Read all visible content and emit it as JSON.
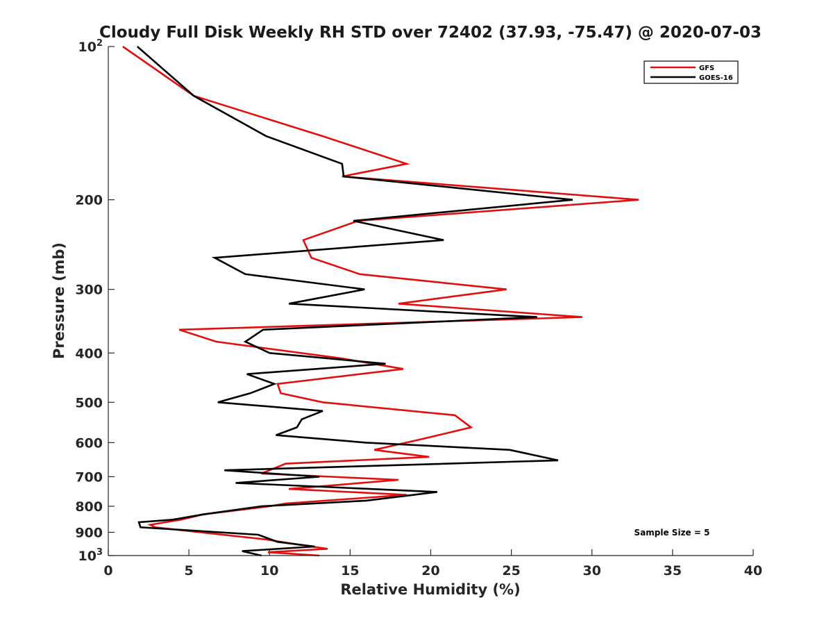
{
  "chart_data": {
    "type": "line",
    "title": "Cloudy Full Disk Weekly RH STD over 72402 (37.93, -75.47) @ 2020-07-03",
    "xlabel": "Relative Humidity (%)",
    "ylabel": "Pressure (mb)",
    "xlim": [
      0,
      40
    ],
    "ylim": [
      100,
      1000
    ],
    "y_scale": "log",
    "y_reversed": true,
    "x_ticks": [
      "0",
      "5",
      "10",
      "15",
      "20",
      "25",
      "30",
      "35",
      "40"
    ],
    "y_ticks": [
      {
        "value": 100,
        "base": "10",
        "exp": "2"
      },
      {
        "value": 200,
        "label": "200"
      },
      {
        "value": 300,
        "label": "300"
      },
      {
        "value": 400,
        "label": "400"
      },
      {
        "value": 500,
        "label": "500"
      },
      {
        "value": 600,
        "label": "600"
      },
      {
        "value": 700,
        "label": "700"
      },
      {
        "value": 800,
        "label": "800"
      },
      {
        "value": 900,
        "label": "900"
      },
      {
        "value": 1000,
        "base": "10",
        "exp": "3"
      }
    ],
    "legend_position": "top-right",
    "grid": false,
    "annotation": "Sample Size = 5",
    "series": [
      {
        "name": "GFS",
        "color": "#e01010",
        "points": [
          [
            0.9,
            100
          ],
          [
            5.3,
            125
          ],
          [
            13.3,
            150
          ],
          [
            18.5,
            170
          ],
          [
            14.5,
            180
          ],
          [
            32.9,
            200
          ],
          [
            15.5,
            220
          ],
          [
            12.1,
            240
          ],
          [
            12.6,
            260
          ],
          [
            15.6,
            280
          ],
          [
            24.7,
            300
          ],
          [
            18.0,
            320
          ],
          [
            29.4,
            340
          ],
          [
            4.4,
            360
          ],
          [
            6.7,
            380
          ],
          [
            14.5,
            410
          ],
          [
            18.3,
            430
          ],
          [
            10.5,
            460
          ],
          [
            10.7,
            480
          ],
          [
            13.3,
            500
          ],
          [
            21.5,
            530
          ],
          [
            22.5,
            560
          ],
          [
            19.5,
            590
          ],
          [
            16.5,
            620
          ],
          [
            19.9,
            640
          ],
          [
            11.0,
            660
          ],
          [
            9.5,
            690
          ],
          [
            18.0,
            710
          ],
          [
            11.2,
            740
          ],
          [
            18.5,
            760
          ],
          [
            11.0,
            790
          ],
          [
            10.0,
            800
          ],
          [
            5.9,
            830
          ],
          [
            4.5,
            850
          ],
          [
            2.6,
            870
          ],
          [
            2.9,
            880
          ],
          [
            9.8,
            930
          ],
          [
            12.1,
            955
          ],
          [
            13.6,
            970
          ],
          [
            9.9,
            985
          ],
          [
            13.1,
            1000
          ]
        ]
      },
      {
        "name": "GOES-16",
        "color": "#000000",
        "points": [
          [
            1.8,
            100
          ],
          [
            5.3,
            125
          ],
          [
            9.8,
            150
          ],
          [
            14.5,
            170
          ],
          [
            14.6,
            180
          ],
          [
            28.8,
            200
          ],
          [
            15.2,
            220
          ],
          [
            20.8,
            240
          ],
          [
            6.6,
            260
          ],
          [
            8.5,
            280
          ],
          [
            15.9,
            300
          ],
          [
            11.2,
            320
          ],
          [
            26.6,
            340
          ],
          [
            9.6,
            360
          ],
          [
            8.5,
            380
          ],
          [
            10.0,
            400
          ],
          [
            17.2,
            420
          ],
          [
            8.6,
            440
          ],
          [
            10.3,
            460
          ],
          [
            8.8,
            480
          ],
          [
            6.8,
            500
          ],
          [
            13.3,
            520
          ],
          [
            12.0,
            540
          ],
          [
            11.7,
            560
          ],
          [
            10.4,
            580
          ],
          [
            16.0,
            600
          ],
          [
            24.9,
            620
          ],
          [
            27.9,
            650
          ],
          [
            7.2,
            680
          ],
          [
            13.1,
            700
          ],
          [
            7.9,
            720
          ],
          [
            20.4,
            750
          ],
          [
            16.0,
            780
          ],
          [
            9.5,
            800
          ],
          [
            5.9,
            830
          ],
          [
            4.0,
            850
          ],
          [
            1.9,
            860
          ],
          [
            2.0,
            880
          ],
          [
            9.3,
            910
          ],
          [
            10.5,
            940
          ],
          [
            12.8,
            960
          ],
          [
            8.3,
            980
          ],
          [
            9.5,
            1000
          ]
        ]
      }
    ]
  }
}
